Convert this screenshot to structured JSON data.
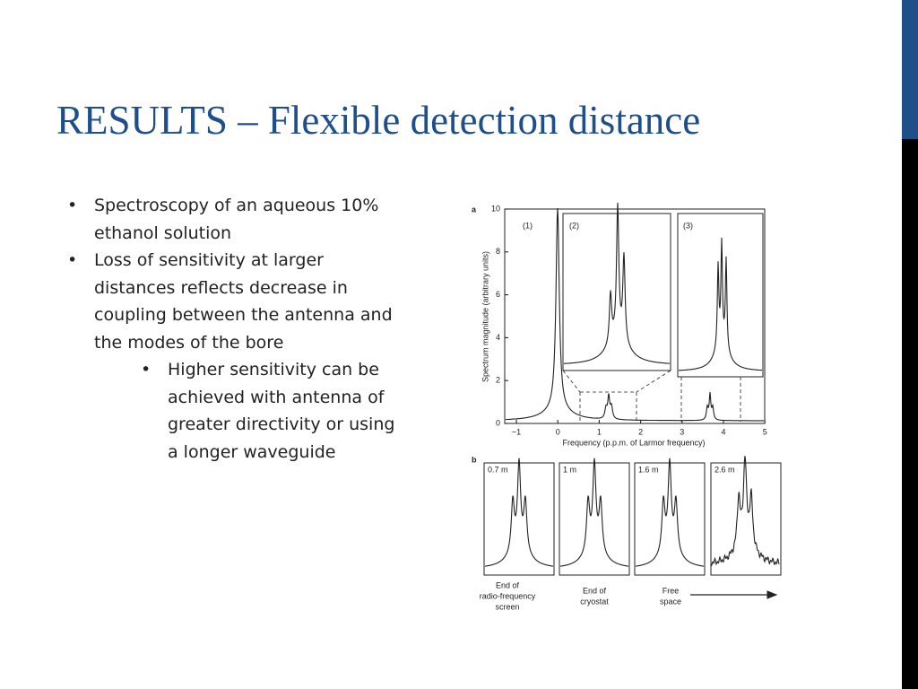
{
  "header": {
    "title": "RESULTS – Flexible detection distance"
  },
  "bullets": [
    {
      "text": "Spectroscopy of an aqueous 10% ethanol solution"
    },
    {
      "text": "Loss of sensitivity at larger distances reflects decrease in coupling between the antenna and the modes of the bore",
      "subbullets": [
        "Higher sensitivity can be achieved with antenna of greater directivity or using a longer waveguide"
      ]
    }
  ],
  "figure": {
    "panel_a": {
      "label": "a",
      "ytick_labels": [
        "0",
        "2",
        "4",
        "6",
        "8",
        "10"
      ],
      "xtick_labels": [
        "−1",
        "0",
        "1",
        "2",
        "3",
        "4",
        "5"
      ],
      "ylabel": "Spectrum magnitude (arbitrary units)",
      "xlabel": "Frequency (p.p.m. of Larmor frequency)",
      "insets": [
        "(1)",
        "(2)",
        "(3)"
      ]
    },
    "panel_b": {
      "label": "b",
      "distances": [
        "0.7 m",
        "1 m",
        "1.6 m",
        "2.6 m"
      ],
      "captions": [
        [
          "End of",
          "radio-frequency",
          "screen"
        ],
        [
          "End of",
          "cryostat"
        ],
        [
          "Free",
          "space"
        ]
      ]
    }
  }
}
